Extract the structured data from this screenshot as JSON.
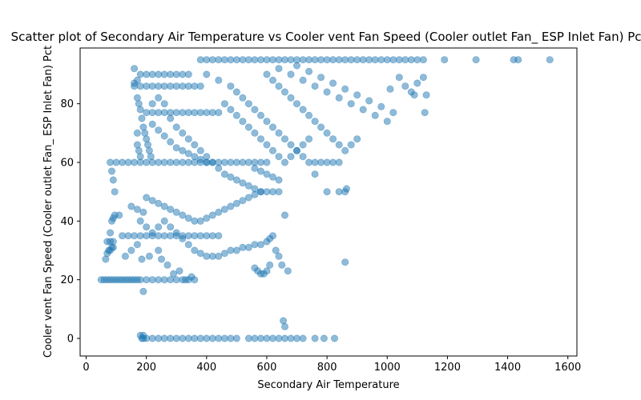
{
  "chart_data": {
    "type": "scatter",
    "title": "Scatter plot of Secondary Air Temperature vs Cooler vent Fan Speed (Cooler outlet Fan_ ESP Inlet Fan) Pct",
    "xlabel": "Secondary Air Temperature",
    "ylabel": "Cooler vent Fan Speed (Cooler outlet Fan_ ESP Inlet Fan) Pct",
    "xlim": [
      -20,
      1630
    ],
    "ylim": [
      -6,
      99
    ],
    "xticks": [
      0,
      200,
      400,
      600,
      800,
      1000,
      1200,
      1400,
      1600
    ],
    "yticks": [
      0,
      20,
      40,
      60,
      80
    ],
    "grid": false,
    "point_color": "#1f77b4",
    "point_alpha": 0.5,
    "points": [
      [
        50,
        20
      ],
      [
        60,
        20
      ],
      [
        70,
        20
      ],
      [
        80,
        20
      ],
      [
        90,
        20
      ],
      [
        100,
        20
      ],
      [
        110,
        20
      ],
      [
        120,
        20
      ],
      [
        130,
        20
      ],
      [
        140,
        20
      ],
      [
        150,
        20
      ],
      [
        160,
        20
      ],
      [
        170,
        20
      ],
      [
        180,
        20
      ],
      [
        200,
        20
      ],
      [
        220,
        20
      ],
      [
        240,
        20
      ],
      [
        260,
        20
      ],
      [
        280,
        20
      ],
      [
        300,
        20
      ],
      [
        320,
        20
      ],
      [
        340,
        20
      ],
      [
        360,
        20
      ],
      [
        190,
        16
      ],
      [
        65,
        27
      ],
      [
        70,
        29
      ],
      [
        75,
        30
      ],
      [
        80,
        30
      ],
      [
        85,
        31
      ],
      [
        90,
        31
      ],
      [
        70,
        33
      ],
      [
        80,
        33
      ],
      [
        90,
        33
      ],
      [
        80,
        36
      ],
      [
        85,
        40
      ],
      [
        90,
        41
      ],
      [
        95,
        42
      ],
      [
        110,
        42
      ],
      [
        120,
        35
      ],
      [
        140,
        35
      ],
      [
        160,
        35
      ],
      [
        180,
        35
      ],
      [
        200,
        35
      ],
      [
        220,
        35
      ],
      [
        240,
        35
      ],
      [
        260,
        35
      ],
      [
        280,
        35
      ],
      [
        300,
        35
      ],
      [
        320,
        35
      ],
      [
        340,
        35
      ],
      [
        360,
        35
      ],
      [
        380,
        35
      ],
      [
        400,
        35
      ],
      [
        420,
        35
      ],
      [
        440,
        35
      ],
      [
        130,
        28
      ],
      [
        150,
        30
      ],
      [
        170,
        32
      ],
      [
        185,
        27
      ],
      [
        210,
        28
      ],
      [
        240,
        30
      ],
      [
        250,
        27
      ],
      [
        270,
        25
      ],
      [
        290,
        22
      ],
      [
        310,
        23
      ],
      [
        330,
        20
      ],
      [
        350,
        21
      ],
      [
        80,
        60
      ],
      [
        100,
        60
      ],
      [
        120,
        60
      ],
      [
        140,
        60
      ],
      [
        160,
        60
      ],
      [
        180,
        60
      ],
      [
        200,
        60
      ],
      [
        220,
        60
      ],
      [
        240,
        60
      ],
      [
        260,
        60
      ],
      [
        280,
        60
      ],
      [
        300,
        60
      ],
      [
        320,
        60
      ],
      [
        340,
        60
      ],
      [
        360,
        60
      ],
      [
        380,
        60
      ],
      [
        400,
        60
      ],
      [
        420,
        60
      ],
      [
        440,
        60
      ],
      [
        460,
        60
      ],
      [
        480,
        60
      ],
      [
        500,
        60
      ],
      [
        520,
        60
      ],
      [
        540,
        60
      ],
      [
        560,
        60
      ],
      [
        580,
        60
      ],
      [
        600,
        60
      ],
      [
        85,
        57
      ],
      [
        90,
        54
      ],
      [
        95,
        50
      ],
      [
        150,
        45
      ],
      [
        170,
        44
      ],
      [
        190,
        43
      ],
      [
        200,
        48
      ],
      [
        220,
        47
      ],
      [
        240,
        46
      ],
      [
        260,
        45
      ],
      [
        280,
        44
      ],
      [
        300,
        43
      ],
      [
        320,
        42
      ],
      [
        340,
        41
      ],
      [
        360,
        40
      ],
      [
        380,
        40
      ],
      [
        400,
        41
      ],
      [
        420,
        42
      ],
      [
        440,
        43
      ],
      [
        460,
        44
      ],
      [
        480,
        45
      ],
      [
        500,
        46
      ],
      [
        520,
        47
      ],
      [
        540,
        48
      ],
      [
        560,
        49
      ],
      [
        580,
        50
      ],
      [
        600,
        50
      ],
      [
        620,
        50
      ],
      [
        640,
        50
      ],
      [
        660,
        42
      ],
      [
        180,
        40
      ],
      [
        200,
        38
      ],
      [
        220,
        36
      ],
      [
        240,
        38
      ],
      [
        260,
        40
      ],
      [
        280,
        38
      ],
      [
        300,
        36
      ],
      [
        320,
        34
      ],
      [
        340,
        32
      ],
      [
        360,
        30
      ],
      [
        380,
        29
      ],
      [
        400,
        28
      ],
      [
        420,
        28
      ],
      [
        440,
        28
      ],
      [
        460,
        29
      ],
      [
        480,
        30
      ],
      [
        500,
        30
      ],
      [
        520,
        31
      ],
      [
        540,
        31
      ],
      [
        560,
        32
      ],
      [
        580,
        32
      ],
      [
        600,
        33
      ],
      [
        610,
        34
      ],
      [
        620,
        35
      ],
      [
        630,
        30
      ],
      [
        640,
        28
      ],
      [
        650,
        25
      ],
      [
        560,
        24
      ],
      [
        570,
        23
      ],
      [
        580,
        22
      ],
      [
        590,
        22
      ],
      [
        600,
        23
      ],
      [
        610,
        25
      ],
      [
        670,
        23
      ],
      [
        160,
        87
      ],
      [
        170,
        88
      ],
      [
        180,
        90
      ],
      [
        200,
        90
      ],
      [
        220,
        90
      ],
      [
        240,
        90
      ],
      [
        260,
        90
      ],
      [
        280,
        90
      ],
      [
        300,
        90
      ],
      [
        320,
        90
      ],
      [
        340,
        90
      ],
      [
        160,
        86
      ],
      [
        180,
        86
      ],
      [
        200,
        86
      ],
      [
        220,
        86
      ],
      [
        240,
        86
      ],
      [
        260,
        86
      ],
      [
        280,
        86
      ],
      [
        300,
        86
      ],
      [
        320,
        86
      ],
      [
        340,
        86
      ],
      [
        360,
        86
      ],
      [
        380,
        86
      ],
      [
        160,
        92
      ],
      [
        170,
        82
      ],
      [
        175,
        80
      ],
      [
        180,
        78
      ],
      [
        185,
        75
      ],
      [
        190,
        72
      ],
      [
        195,
        70
      ],
      [
        200,
        68
      ],
      [
        205,
        66
      ],
      [
        210,
        64
      ],
      [
        215,
        62
      ],
      [
        170,
        70
      ],
      [
        170,
        66
      ],
      [
        175,
        64
      ],
      [
        180,
        62
      ],
      [
        200,
        77
      ],
      [
        220,
        77
      ],
      [
        240,
        77
      ],
      [
        260,
        77
      ],
      [
        280,
        77
      ],
      [
        300,
        77
      ],
      [
        320,
        77
      ],
      [
        340,
        77
      ],
      [
        360,
        77
      ],
      [
        380,
        77
      ],
      [
        400,
        77
      ],
      [
        420,
        77
      ],
      [
        440,
        77
      ],
      [
        220,
        80
      ],
      [
        240,
        82
      ],
      [
        260,
        80
      ],
      [
        280,
        75
      ],
      [
        300,
        72
      ],
      [
        320,
        70
      ],
      [
        340,
        68
      ],
      [
        360,
        66
      ],
      [
        380,
        64
      ],
      [
        400,
        62
      ],
      [
        420,
        60
      ],
      [
        440,
        58
      ],
      [
        460,
        56
      ],
      [
        480,
        55
      ],
      [
        500,
        54
      ],
      [
        520,
        53
      ],
      [
        540,
        52
      ],
      [
        560,
        51
      ],
      [
        580,
        50
      ],
      [
        220,
        73
      ],
      [
        240,
        71
      ],
      [
        260,
        69
      ],
      [
        280,
        67
      ],
      [
        300,
        65
      ],
      [
        320,
        64
      ],
      [
        340,
        63
      ],
      [
        360,
        62
      ],
      [
        380,
        61
      ],
      [
        400,
        60
      ],
      [
        380,
        95
      ],
      [
        400,
        95
      ],
      [
        420,
        95
      ],
      [
        440,
        95
      ],
      [
        460,
        95
      ],
      [
        480,
        95
      ],
      [
        500,
        95
      ],
      [
        520,
        95
      ],
      [
        540,
        95
      ],
      [
        560,
        95
      ],
      [
        580,
        95
      ],
      [
        600,
        95
      ],
      [
        620,
        95
      ],
      [
        640,
        95
      ],
      [
        660,
        95
      ],
      [
        680,
        95
      ],
      [
        700,
        95
      ],
      [
        720,
        95
      ],
      [
        740,
        95
      ],
      [
        760,
        95
      ],
      [
        780,
        95
      ],
      [
        800,
        95
      ],
      [
        820,
        95
      ],
      [
        840,
        95
      ],
      [
        860,
        95
      ],
      [
        880,
        95
      ],
      [
        900,
        95
      ],
      [
        920,
        95
      ],
      [
        940,
        95
      ],
      [
        960,
        95
      ],
      [
        980,
        95
      ],
      [
        1000,
        95
      ],
      [
        1020,
        95
      ],
      [
        1040,
        95
      ],
      [
        1060,
        95
      ],
      [
        1080,
        95
      ],
      [
        1100,
        95
      ],
      [
        1120,
        95
      ],
      [
        1190,
        95
      ],
      [
        1295,
        95
      ],
      [
        1420,
        95
      ],
      [
        1435,
        95
      ],
      [
        1540,
        95
      ],
      [
        400,
        90
      ],
      [
        440,
        88
      ],
      [
        480,
        86
      ],
      [
        500,
        84
      ],
      [
        520,
        82
      ],
      [
        540,
        80
      ],
      [
        560,
        78
      ],
      [
        580,
        76
      ],
      [
        600,
        74
      ],
      [
        620,
        72
      ],
      [
        640,
        70
      ],
      [
        660,
        68
      ],
      [
        680,
        66
      ],
      [
        700,
        64
      ],
      [
        720,
        62
      ],
      [
        740,
        60
      ],
      [
        760,
        60
      ],
      [
        780,
        60
      ],
      [
        800,
        60
      ],
      [
        820,
        60
      ],
      [
        840,
        60
      ],
      [
        460,
        80
      ],
      [
        480,
        78
      ],
      [
        500,
        76
      ],
      [
        520,
        74
      ],
      [
        540,
        72
      ],
      [
        560,
        70
      ],
      [
        580,
        68
      ],
      [
        600,
        66
      ],
      [
        620,
        64
      ],
      [
        640,
        62
      ],
      [
        660,
        60
      ],
      [
        680,
        62
      ],
      [
        700,
        64
      ],
      [
        720,
        66
      ],
      [
        740,
        68
      ],
      [
        600,
        90
      ],
      [
        620,
        88
      ],
      [
        640,
        86
      ],
      [
        660,
        84
      ],
      [
        680,
        82
      ],
      [
        700,
        80
      ],
      [
        720,
        78
      ],
      [
        740,
        76
      ],
      [
        760,
        74
      ],
      [
        780,
        72
      ],
      [
        800,
        70
      ],
      [
        820,
        68
      ],
      [
        840,
        66
      ],
      [
        860,
        64
      ],
      [
        880,
        66
      ],
      [
        900,
        68
      ],
      [
        640,
        92
      ],
      [
        680,
        90
      ],
      [
        720,
        88
      ],
      [
        760,
        86
      ],
      [
        800,
        84
      ],
      [
        840,
        82
      ],
      [
        880,
        80
      ],
      [
        920,
        78
      ],
      [
        960,
        76
      ],
      [
        1000,
        74
      ],
      [
        1020,
        77
      ],
      [
        700,
        93
      ],
      [
        740,
        91
      ],
      [
        780,
        89
      ],
      [
        820,
        87
      ],
      [
        860,
        85
      ],
      [
        900,
        83
      ],
      [
        940,
        81
      ],
      [
        980,
        79
      ],
      [
        1010,
        85
      ],
      [
        1040,
        89
      ],
      [
        1060,
        86
      ],
      [
        1080,
        84
      ],
      [
        1100,
        87
      ],
      [
        1120,
        89
      ],
      [
        1090,
        83
      ],
      [
        1130,
        83
      ],
      [
        1125,
        77
      ],
      [
        560,
        58
      ],
      [
        580,
        57
      ],
      [
        600,
        56
      ],
      [
        620,
        55
      ],
      [
        640,
        54
      ],
      [
        760,
        56
      ],
      [
        800,
        50
      ],
      [
        840,
        50
      ],
      [
        860,
        50
      ],
      [
        865,
        51
      ],
      [
        860,
        26
      ],
      [
        655,
        6
      ],
      [
        660,
        4
      ],
      [
        180,
        1
      ],
      [
        185,
        0
      ],
      [
        190,
        0
      ],
      [
        200,
        0
      ],
      [
        220,
        0
      ],
      [
        240,
        0
      ],
      [
        260,
        0
      ],
      [
        280,
        0
      ],
      [
        300,
        0
      ],
      [
        320,
        0
      ],
      [
        340,
        0
      ],
      [
        360,
        0
      ],
      [
        380,
        0
      ],
      [
        400,
        0
      ],
      [
        420,
        0
      ],
      [
        440,
        0
      ],
      [
        460,
        0
      ],
      [
        480,
        0
      ],
      [
        500,
        0
      ],
      [
        540,
        0
      ],
      [
        560,
        0
      ],
      [
        580,
        0
      ],
      [
        600,
        0
      ],
      [
        620,
        0
      ],
      [
        640,
        0
      ],
      [
        660,
        0
      ],
      [
        680,
        0
      ],
      [
        700,
        0
      ],
      [
        720,
        0
      ],
      [
        760,
        0
      ],
      [
        790,
        0
      ],
      [
        825,
        0
      ],
      [
        190,
        1
      ]
    ]
  }
}
